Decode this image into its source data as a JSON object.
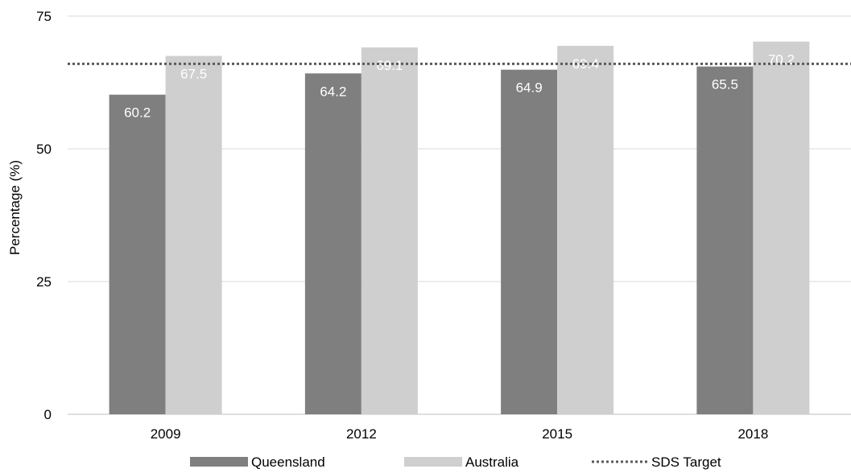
{
  "chart_data": {
    "type": "bar",
    "title": "",
    "xlabel": "",
    "ylabel": "Percentage (%)",
    "categories": [
      "2009",
      "2012",
      "2015",
      "2018"
    ],
    "series": [
      {
        "name": "Queensland",
        "values": [
          60.2,
          64.2,
          64.9,
          65.5
        ],
        "color": "#7f7f7f"
      },
      {
        "name": "Australia",
        "values": [
          67.5,
          69.1,
          69.4,
          70.2
        ],
        "color": "#d0cfd0"
      }
    ],
    "reference_line": {
      "name": "SDS Target",
      "value": 66,
      "style": "dotted",
      "color": "#595959"
    },
    "ylim": [
      0,
      75
    ],
    "yticks": [
      0,
      25,
      50,
      75
    ],
    "grid": true,
    "legend_position": "bottom",
    "data_label_color": "#ffffff"
  }
}
